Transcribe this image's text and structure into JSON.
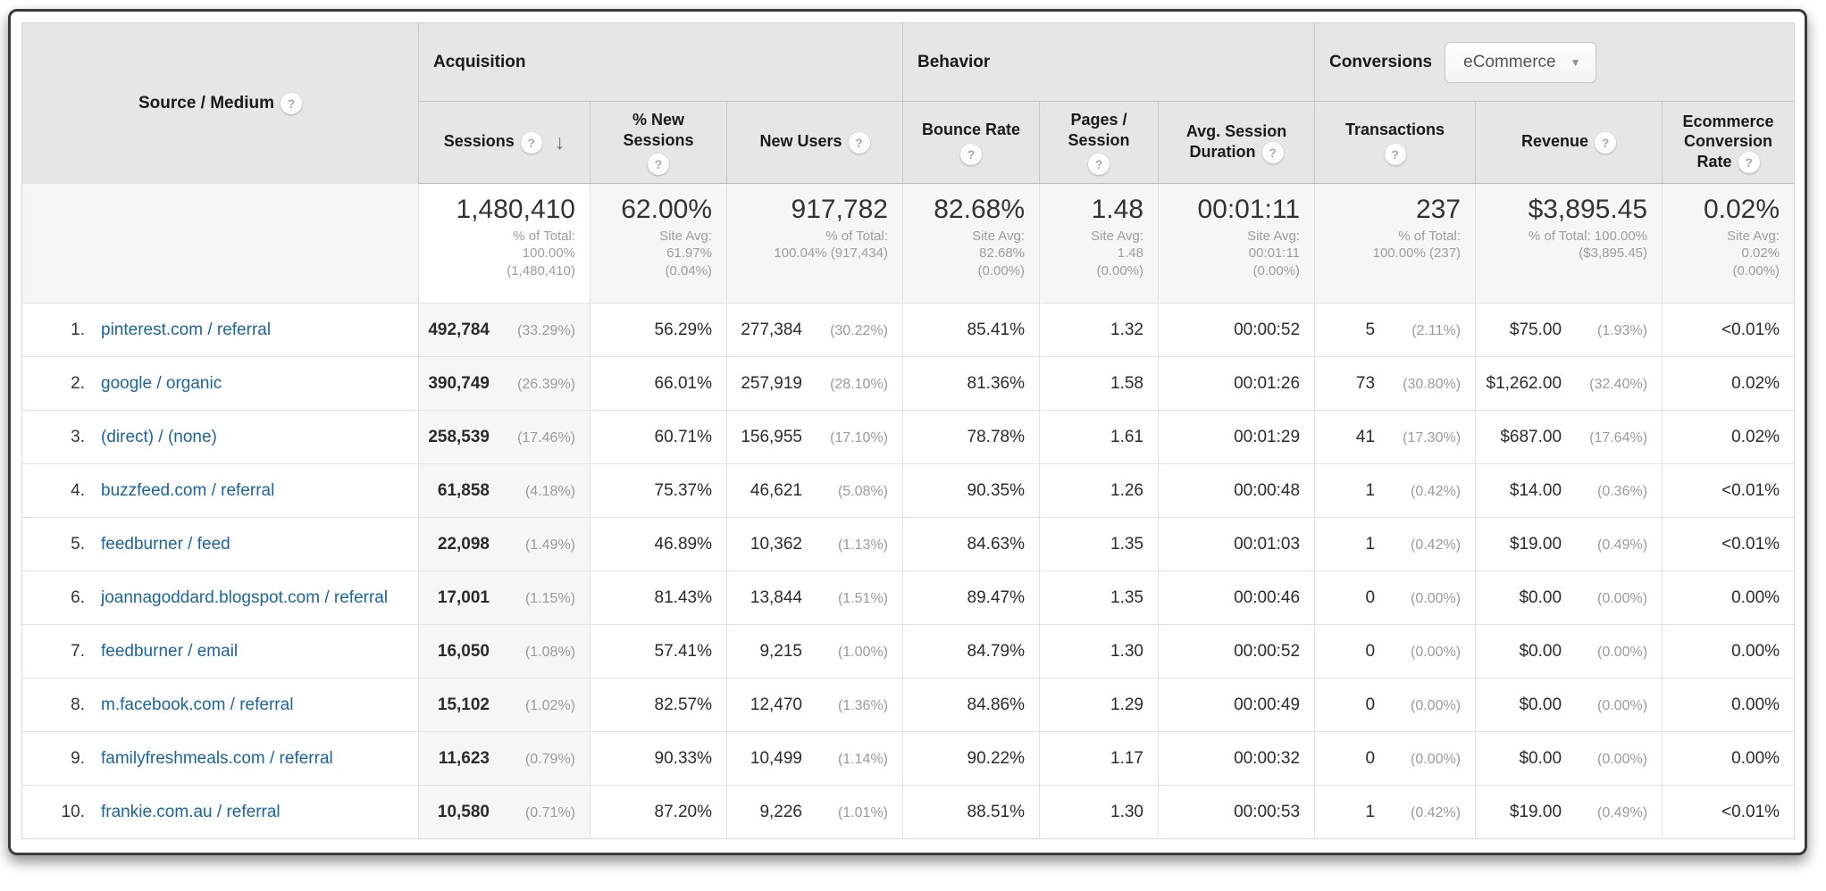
{
  "icons": {
    "help": "?",
    "sort_desc": "↓",
    "caret": "▼"
  },
  "table": {
    "groups": {
      "acquisition": "Acquisition",
      "behavior": "Behavior",
      "conversions": "Conversions"
    },
    "conversions_dropdown": {
      "value": "eCommerce"
    },
    "columns": {
      "source_medium": {
        "label": "Source / Medium"
      },
      "sessions": {
        "label": "Sessions",
        "sorted": "desc"
      },
      "pct_new_sessions": {
        "label": "% New Sessions"
      },
      "new_users": {
        "label": "New Users"
      },
      "bounce_rate": {
        "label": "Bounce Rate"
      },
      "pages_session": {
        "label": "Pages / Session"
      },
      "avg_session_duration": {
        "label": "Avg. Session Duration"
      },
      "transactions": {
        "label": "Transactions"
      },
      "revenue": {
        "label": "Revenue"
      },
      "ecommerce_conversion_rate": {
        "label": "Ecommerce Conversion Rate"
      }
    },
    "totals": {
      "sessions": {
        "big": "1,480,410",
        "sub": "% of Total:\n100.00%\n(1,480,410)"
      },
      "pct_new_sessions": {
        "big": "62.00%",
        "sub": "Site Avg:\n61.97%\n(0.04%)"
      },
      "new_users": {
        "big": "917,782",
        "sub": "% of Total:\n100.04% (917,434)"
      },
      "bounce_rate": {
        "big": "82.68%",
        "sub": "Site Avg:\n82.68%\n(0.00%)"
      },
      "pages_session": {
        "big": "1.48",
        "sub": "Site Avg:\n1.48\n(0.00%)"
      },
      "avg_session_duration": {
        "big": "00:01:11",
        "sub": "Site Avg:\n00:01:11\n(0.00%)"
      },
      "transactions": {
        "big": "237",
        "sub": "% of Total:\n100.00% (237)"
      },
      "revenue": {
        "big": "$3,895.45",
        "sub": "% of Total: 100.00%\n($3,895.45)"
      },
      "ecommerce_conversion_rate": {
        "big": "0.02%",
        "sub": "Site Avg:\n0.02%\n(0.00%)"
      }
    },
    "rows": [
      {
        "index": "1.",
        "source": "pinterest.com / referral",
        "sessions": "492,784",
        "sessions_pct": "(33.29%)",
        "pct_new_sessions": "56.29%",
        "new_users": "277,384",
        "new_users_pct": "(30.22%)",
        "bounce_rate": "85.41%",
        "pages_session": "1.32",
        "avg_session_duration": "00:00:52",
        "transactions": "5",
        "transactions_pct": "(2.11%)",
        "revenue": "$75.00",
        "revenue_pct": "(1.93%)",
        "conversion_rate": "<0.01%"
      },
      {
        "index": "2.",
        "source": "google / organic",
        "sessions": "390,749",
        "sessions_pct": "(26.39%)",
        "pct_new_sessions": "66.01%",
        "new_users": "257,919",
        "new_users_pct": "(28.10%)",
        "bounce_rate": "81.36%",
        "pages_session": "1.58",
        "avg_session_duration": "00:01:26",
        "transactions": "73",
        "transactions_pct": "(30.80%)",
        "revenue": "$1,262.00",
        "revenue_pct": "(32.40%)",
        "conversion_rate": "0.02%"
      },
      {
        "index": "3.",
        "source": "(direct) / (none)",
        "sessions": "258,539",
        "sessions_pct": "(17.46%)",
        "pct_new_sessions": "60.71%",
        "new_users": "156,955",
        "new_users_pct": "(17.10%)",
        "bounce_rate": "78.78%",
        "pages_session": "1.61",
        "avg_session_duration": "00:01:29",
        "transactions": "41",
        "transactions_pct": "(17.30%)",
        "revenue": "$687.00",
        "revenue_pct": "(17.64%)",
        "conversion_rate": "0.02%"
      },
      {
        "index": "4.",
        "source": "buzzfeed.com / referral",
        "sessions": "61,858",
        "sessions_pct": "(4.18%)",
        "pct_new_sessions": "75.37%",
        "new_users": "46,621",
        "new_users_pct": "(5.08%)",
        "bounce_rate": "90.35%",
        "pages_session": "1.26",
        "avg_session_duration": "00:00:48",
        "transactions": "1",
        "transactions_pct": "(0.42%)",
        "revenue": "$14.00",
        "revenue_pct": "(0.36%)",
        "conversion_rate": "<0.01%"
      },
      {
        "index": "5.",
        "source": "feedburner / feed",
        "sessions": "22,098",
        "sessions_pct": "(1.49%)",
        "pct_new_sessions": "46.89%",
        "new_users": "10,362",
        "new_users_pct": "(1.13%)",
        "bounce_rate": "84.63%",
        "pages_session": "1.35",
        "avg_session_duration": "00:01:03",
        "transactions": "1",
        "transactions_pct": "(0.42%)",
        "revenue": "$19.00",
        "revenue_pct": "(0.49%)",
        "conversion_rate": "<0.01%"
      },
      {
        "index": "6.",
        "source": "joannagoddard.blogspot.com / referral",
        "sessions": "17,001",
        "sessions_pct": "(1.15%)",
        "pct_new_sessions": "81.43%",
        "new_users": "13,844",
        "new_users_pct": "(1.51%)",
        "bounce_rate": "89.47%",
        "pages_session": "1.35",
        "avg_session_duration": "00:00:46",
        "transactions": "0",
        "transactions_pct": "(0.00%)",
        "revenue": "$0.00",
        "revenue_pct": "(0.00%)",
        "conversion_rate": "0.00%"
      },
      {
        "index": "7.",
        "source": "feedburner / email",
        "sessions": "16,050",
        "sessions_pct": "(1.08%)",
        "pct_new_sessions": "57.41%",
        "new_users": "9,215",
        "new_users_pct": "(1.00%)",
        "bounce_rate": "84.79%",
        "pages_session": "1.30",
        "avg_session_duration": "00:00:52",
        "transactions": "0",
        "transactions_pct": "(0.00%)",
        "revenue": "$0.00",
        "revenue_pct": "(0.00%)",
        "conversion_rate": "0.00%"
      },
      {
        "index": "8.",
        "source": "m.facebook.com / referral",
        "sessions": "15,102",
        "sessions_pct": "(1.02%)",
        "pct_new_sessions": "82.57%",
        "new_users": "12,470",
        "new_users_pct": "(1.36%)",
        "bounce_rate": "84.86%",
        "pages_session": "1.29",
        "avg_session_duration": "00:00:49",
        "transactions": "0",
        "transactions_pct": "(0.00%)",
        "revenue": "$0.00",
        "revenue_pct": "(0.00%)",
        "conversion_rate": "0.00%"
      },
      {
        "index": "9.",
        "source": "familyfreshmeals.com / referral",
        "sessions": "11,623",
        "sessions_pct": "(0.79%)",
        "pct_new_sessions": "90.33%",
        "new_users": "10,499",
        "new_users_pct": "(1.14%)",
        "bounce_rate": "90.22%",
        "pages_session": "1.17",
        "avg_session_duration": "00:00:32",
        "transactions": "0",
        "transactions_pct": "(0.00%)",
        "revenue": "$0.00",
        "revenue_pct": "(0.00%)",
        "conversion_rate": "0.00%"
      },
      {
        "index": "10.",
        "source": "frankie.com.au / referral",
        "sessions": "10,580",
        "sessions_pct": "(0.71%)",
        "pct_new_sessions": "87.20%",
        "new_users": "9,226",
        "new_users_pct": "(1.01%)",
        "bounce_rate": "88.51%",
        "pages_session": "1.30",
        "avg_session_duration": "00:00:53",
        "transactions": "1",
        "transactions_pct": "(0.42%)",
        "revenue": "$19.00",
        "revenue_pct": "(0.49%)",
        "conversion_rate": "<0.01%"
      }
    ]
  }
}
